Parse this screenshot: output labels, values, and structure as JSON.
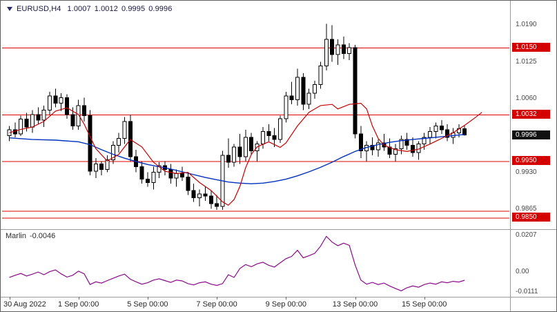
{
  "header": {
    "symbol": "EURUSD,H4",
    "open": "1.0007",
    "high": "1.0012",
    "low": "0.9995",
    "close": "0.9996"
  },
  "colors": {
    "level_line": "#e00000",
    "badge_red": "#d40000",
    "badge_black": "#111111",
    "ma_red": "#c40000",
    "ma_blue": "#0030c0",
    "marlin_line": "#8a0a8a",
    "candle_outline": "#000000",
    "candle_bull": "#ffffff",
    "candle_bear": "#000000"
  },
  "chart_data": {
    "type": "candlestick",
    "title": "EURUSD,H4",
    "price_axis": {
      "min": 0.9831,
      "max": 1.0216,
      "tick_labels": [
        {
          "label": "1.0190",
          "price": 1.019
        },
        {
          "label": "1.0125",
          "price": 1.0125
        },
        {
          "label": "1.0060",
          "price": 1.006
        },
        {
          "label": "0.9930",
          "price": 0.993
        },
        {
          "label": "0.9865",
          "price": 0.9865
        }
      ],
      "level_lines": [
        {
          "label": "1.0150",
          "price": 1.015,
          "badge": true
        },
        {
          "label": "1.0032",
          "price": 1.0032,
          "badge": true
        },
        {
          "label": "0.9950",
          "price": 0.995,
          "badge": true
        },
        {
          "label": "0.9862",
          "price": 0.9862,
          "badge": false
        },
        {
          "label": "0.9850",
          "price": 0.985,
          "badge": true
        }
      ],
      "current_price": {
        "label": "0.9996",
        "price": 0.9996
      }
    },
    "candles_ohlc": [
      [
        0.9995,
        1.0012,
        0.9985,
        1.0005
      ],
      [
        1.0005,
        1.0018,
        0.9992,
        0.9998
      ],
      [
        0.9998,
        1.003,
        0.9994,
        1.0024
      ],
      [
        1.0024,
        1.0035,
        1.0002,
        1.001
      ],
      [
        1.001,
        1.004,
        1.0,
        1.0032
      ],
      [
        1.0032,
        1.0045,
        1.0015,
        1.0022
      ],
      [
        1.0022,
        1.0048,
        1.001,
        1.004
      ],
      [
        1.004,
        1.0072,
        1.0032,
        1.0065
      ],
      [
        1.0065,
        1.0078,
        1.0045,
        1.0052
      ],
      [
        1.0052,
        1.007,
        1.0038,
        1.0062
      ],
      [
        1.0062,
        1.0068,
        1.0025,
        1.0032
      ],
      [
        1.0032,
        1.0045,
        1.0005,
        1.0012
      ],
      [
        1.0012,
        1.0058,
        1.0005,
        1.0048
      ],
      [
        1.0048,
        1.0062,
        1.002,
        1.003
      ],
      [
        1.003,
        1.004,
        0.9925,
        0.9932
      ],
      [
        0.9932,
        0.9955,
        0.992,
        0.9945
      ],
      [
        0.9945,
        0.995,
        0.9925,
        0.9935
      ],
      [
        0.9935,
        0.996,
        0.993,
        0.9952
      ],
      [
        0.9952,
        0.9985,
        0.9945,
        0.9978
      ],
      [
        0.9978,
        1.0,
        0.9965,
        0.999
      ],
      [
        0.999,
        1.0028,
        0.998,
        1.002
      ],
      [
        1.002,
        1.0032,
        0.995,
        0.9958
      ],
      [
        0.9958,
        0.997,
        0.993,
        0.994
      ],
      [
        0.994,
        0.995,
        0.991,
        0.9918
      ],
      [
        0.9918,
        0.993,
        0.9905,
        0.9912
      ],
      [
        0.9912,
        0.994,
        0.99,
        0.993
      ],
      [
        0.993,
        0.9948,
        0.992,
        0.9942
      ],
      [
        0.9942,
        0.995,
        0.9925,
        0.9935
      ],
      [
        0.9935,
        0.9945,
        0.991,
        0.992
      ],
      [
        0.992,
        0.9935,
        0.9905,
        0.9928
      ],
      [
        0.9928,
        0.994,
        0.9915,
        0.9922
      ],
      [
        0.9922,
        0.993,
        0.989,
        0.9898
      ],
      [
        0.9898,
        0.991,
        0.9878,
        0.9885
      ],
      [
        0.9885,
        0.99,
        0.987,
        0.9892
      ],
      [
        0.9892,
        0.9905,
        0.988,
        0.9888
      ],
      [
        0.9888,
        0.9898,
        0.9866,
        0.9875
      ],
      [
        0.9875,
        0.989,
        0.9864,
        0.987
      ],
      [
        0.987,
        0.9968,
        0.9864,
        0.996
      ],
      [
        0.996,
        0.999,
        0.9938,
        0.9948
      ],
      [
        0.9948,
        0.998,
        0.994,
        0.9975
      ],
      [
        0.9975,
        0.9998,
        0.9945,
        0.9958
      ],
      [
        0.9958,
        1.0005,
        0.995,
        0.9992
      ],
      [
        0.9992,
        1.0,
        0.996,
        0.9968
      ],
      [
        0.9968,
        0.9985,
        0.995,
        0.998
      ],
      [
        0.998,
        1.001,
        0.9972,
        1.0002
      ],
      [
        1.0002,
        1.0015,
        0.9985,
        0.9995
      ],
      [
        0.9995,
        1.0008,
        0.9975,
        0.9988
      ],
      [
        0.9988,
        1.003,
        0.9982,
        1.0025
      ],
      [
        1.0025,
        1.0072,
        1.0018,
        1.0065
      ],
      [
        1.0065,
        1.009,
        1.005,
        1.0058
      ],
      [
        1.0058,
        1.0113,
        1.0048,
        1.0098
      ],
      [
        1.0098,
        1.0105,
        1.004,
        1.005
      ],
      [
        1.005,
        1.0078,
        1.0042,
        1.007
      ],
      [
        1.007,
        1.0092,
        1.006,
        1.0085
      ],
      [
        1.0085,
        1.0125,
        1.0078,
        1.0118
      ],
      [
        1.0118,
        1.0192,
        1.011,
        1.0165
      ],
      [
        1.0165,
        1.019,
        1.0125,
        1.0138
      ],
      [
        1.0138,
        1.0165,
        1.012,
        1.0155
      ],
      [
        1.0155,
        1.017,
        1.013,
        1.014
      ],
      [
        1.014,
        1.0158,
        1.0128,
        1.015
      ],
      [
        1.015,
        1.0155,
        0.999,
        0.9998
      ],
      [
        0.9998,
        1.0012,
        0.9955,
        0.9968
      ],
      [
        0.9968,
        0.9985,
        0.995,
        0.9978
      ],
      [
        0.9978,
        0.9992,
        0.996,
        0.997
      ],
      [
        0.997,
        0.9988,
        0.9958,
        0.9982
      ],
      [
        0.9982,
        0.9998,
        0.9968,
        0.9975
      ],
      [
        0.9975,
        0.999,
        0.9955,
        0.9962
      ],
      [
        0.9962,
        0.998,
        0.995,
        0.9972
      ],
      [
        0.9972,
        0.9995,
        0.9962,
        0.9988
      ],
      [
        0.9988,
        1.0,
        0.997,
        0.9978
      ],
      [
        0.9978,
        0.9992,
        0.9958,
        0.9965
      ],
      [
        0.9965,
        0.9985,
        0.9952,
        0.998
      ],
      [
        0.998,
        1.0,
        0.997,
        0.9992
      ],
      [
        0.9992,
        1.001,
        0.998,
        1.0002
      ],
      [
        1.0002,
        1.0018,
        0.999,
        1.0012
      ],
      [
        1.0012,
        1.0022,
        0.9998,
        1.0005
      ],
      [
        1.0005,
        1.0015,
        0.9985,
        0.9992
      ],
      [
        0.9992,
        1.0008,
        0.998,
        1.0
      ],
      [
        1.0,
        1.0015,
        0.9992,
        1.0007
      ],
      [
        1.0007,
        1.0012,
        0.9995,
        0.9996
      ]
    ],
    "ma_red_points": [
      [
        0,
        1.0
      ],
      [
        2,
        1.0006
      ],
      [
        4,
        1.001
      ],
      [
        6,
        1.002
      ],
      [
        8,
        1.0038
      ],
      [
        10,
        1.0044
      ],
      [
        12,
        1.0032
      ],
      [
        13,
        1.0015
      ],
      [
        15,
        0.9972
      ],
      [
        17,
        0.995
      ],
      [
        19,
        0.9962
      ],
      [
        21,
        0.9988
      ],
      [
        23,
        0.9975
      ],
      [
        25,
        0.9948
      ],
      [
        27,
        0.9932
      ],
      [
        29,
        0.9928
      ],
      [
        31,
        0.993
      ],
      [
        33,
        0.9912
      ],
      [
        35,
        0.9898
      ],
      [
        37,
        0.9878
      ],
      [
        38,
        0.9872
      ],
      [
        39,
        0.9882
      ],
      [
        40,
        0.9905
      ],
      [
        41,
        0.9938
      ],
      [
        42,
        0.9962
      ],
      [
        43,
        0.9975
      ],
      [
        45,
        0.9984
      ],
      [
        47,
        0.9974
      ],
      [
        48,
        0.9982
      ],
      [
        50,
        1.0012
      ],
      [
        52,
        1.0036
      ],
      [
        54,
        1.0048
      ],
      [
        56,
        1.005
      ],
      [
        57,
        1.0042
      ],
      [
        59,
        1.005
      ],
      [
        61,
        1.0052
      ],
      [
        62,
        1.0042
      ],
      [
        63,
        1.0012
      ],
      [
        64,
        0.999
      ],
      [
        65,
        0.9978
      ],
      [
        67,
        0.997
      ],
      [
        69,
        0.9967
      ],
      [
        71,
        0.9971
      ],
      [
        73,
        0.998
      ],
      [
        75,
        0.999
      ],
      [
        77,
        1.0
      ],
      [
        79,
        1.0013
      ],
      [
        81,
        1.0028
      ],
      [
        82,
        1.0036
      ]
    ],
    "ma_blue_points": [
      [
        0,
        0.9991
      ],
      [
        4,
        0.9988
      ],
      [
        8,
        0.9987
      ],
      [
        12,
        0.9984
      ],
      [
        14,
        0.9979
      ],
      [
        16,
        0.997
      ],
      [
        18,
        0.9962
      ],
      [
        20,
        0.9955
      ],
      [
        22,
        0.9949
      ],
      [
        24,
        0.9944
      ],
      [
        26,
        0.994
      ],
      [
        28,
        0.9936
      ],
      [
        30,
        0.9931
      ],
      [
        32,
        0.9926
      ],
      [
        34,
        0.9921
      ],
      [
        36,
        0.9917
      ],
      [
        38,
        0.9913
      ],
      [
        40,
        0.9911
      ],
      [
        42,
        0.991
      ],
      [
        44,
        0.9911
      ],
      [
        46,
        0.9914
      ],
      [
        48,
        0.9918
      ],
      [
        50,
        0.9924
      ],
      [
        52,
        0.9931
      ],
      [
        54,
        0.9939
      ],
      [
        56,
        0.9948
      ],
      [
        58,
        0.9958
      ],
      [
        60,
        0.9967
      ],
      [
        62,
        0.9974
      ],
      [
        64,
        0.9979
      ],
      [
        66,
        0.9983
      ],
      [
        68,
        0.9986
      ],
      [
        70,
        0.9988
      ],
      [
        72,
        0.999
      ],
      [
        74,
        0.9992
      ],
      [
        76,
        0.9994
      ],
      [
        78,
        0.9996
      ],
      [
        79,
        0.9997
      ]
    ],
    "indicator": {
      "name": "Marlin",
      "current_value": "-0.0046",
      "axis_labels": [
        {
          "label": "0.0207",
          "value": 0.0207
        },
        {
          "label": "0.00",
          "value": 0.0
        },
        {
          "label": "-0.0111",
          "value": -0.0111
        }
      ],
      "range": [
        -0.0135,
        0.0225
      ],
      "values": [
        -0.003,
        -0.0018,
        -0.0008,
        -0.0022,
        -0.0012,
        0.0,
        -0.0015,
        0.0002,
        0.0012,
        -0.001,
        -0.0028,
        -0.0018,
        0.0005,
        -0.001,
        -0.007,
        -0.0055,
        -0.0062,
        -0.0048,
        -0.0035,
        -0.0022,
        -0.0012,
        -0.004,
        -0.0055,
        -0.0068,
        -0.006,
        -0.0045,
        -0.0038,
        -0.0048,
        -0.0058,
        -0.0045,
        -0.005,
        -0.0065,
        -0.0072,
        -0.006,
        -0.0055,
        -0.0068,
        -0.0075,
        -0.0065,
        -0.0015,
        -0.003,
        0.002,
        0.0042,
        0.003,
        0.0046,
        0.0055,
        0.0038,
        0.0028,
        0.0052,
        0.0075,
        0.0088,
        0.0122,
        0.008,
        0.0092,
        0.0105,
        0.0145,
        0.02,
        0.0168,
        0.0148,
        0.0162,
        0.015,
        0.004,
        -0.0045,
        -0.0068,
        -0.0058,
        -0.007,
        -0.0062,
        -0.0078,
        -0.0092,
        -0.0105,
        -0.0088,
        -0.0078,
        -0.0085,
        -0.007,
        -0.0062,
        -0.0068,
        -0.0055,
        -0.006,
        -0.0052,
        -0.0056,
        -0.0046
      ]
    },
    "x_axis": {
      "labels": [
        {
          "text": "30 Aug 2022",
          "idx": 0,
          "align": "left"
        },
        {
          "text": "1 Sep 00:00",
          "idx": 12
        },
        {
          "text": "5 Sep 00:00",
          "idx": 24
        },
        {
          "text": "7 Sep 00:00",
          "idx": 36
        },
        {
          "text": "9 Sep 00:00",
          "idx": 48
        },
        {
          "text": "13 Sep 00:00",
          "idx": 60
        },
        {
          "text": "15 Sep 00:00",
          "idx": 72
        }
      ]
    }
  }
}
